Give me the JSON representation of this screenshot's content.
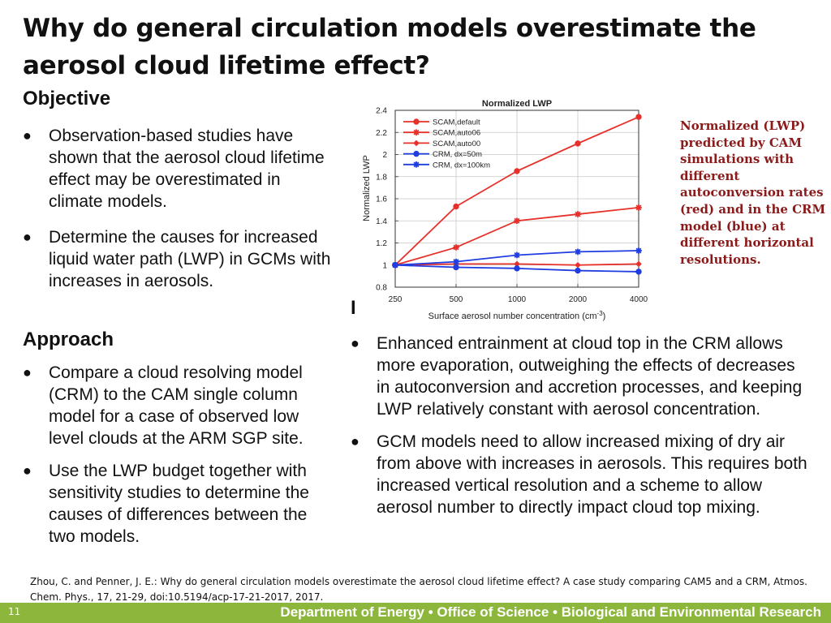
{
  "slide": {
    "title": "Why do general circulation models overestimate the aerosol cloud lifetime effect?",
    "objective_heading": "Objective",
    "objective_bullets": [
      "Observation-based studies  have shown that the aerosol cloud lifetime effect may be overestimated in climate models.",
      "Determine the causes for increased liquid water path (LWP) in GCMs with increases in aerosols."
    ],
    "approach_heading": "Approach",
    "approach_bullets": [
      "Compare a cloud resolving model (CRM) to the CAM single column model for a case of observed low level clouds at the ARM SGP site.",
      "Use the LWP budget together with sensitivity studies to determine the causes of differences between the two models."
    ],
    "impact_heading_visible": "I",
    "impact_bullets": [
      "Enhanced entrainment at cloud top in the CRM allows more evaporation, outweighing the effects of decreases in autoconversion and accretion processes, and keeping LWP relatively constant with aerosol concentration.",
      "GCM models need to allow increased mixing of dry air from above with increases in aerosols. This requires both increased vertical resolution and a scheme to allow aerosol number to directly impact cloud top mixing."
    ],
    "figure_caption": "Normalized (LWP) predicted by CAM simulations with different autoconversion rates (red) and in the CRM  model (blue) at different horizontal resolutions.",
    "citation": "Zhou, C. and Penner, J. E.: Why do general circulation models overestimate the aerosol cloud lifetime effect? A case study comparing CAM5 and a CRM, Atmos. Chem. Phys., 17, 21-29, doi:10.5194/acp-17-21-2017, 2017.",
    "footer_text": "Department of Energy  •  Office of Science  •  Biological and Environmental Research",
    "page_number": "11",
    "colors": {
      "footer_bar": "#8db73c",
      "caption_text": "#8b1a1a"
    }
  },
  "chart_data": {
    "type": "line",
    "title": "Normalized LWP",
    "xlabel": "Surface aerosol number concentration (cm",
    "xlabel_sup": "-3",
    "xlabel_end": ")",
    "ylabel": "Normalized LWP",
    "categories": [
      "250",
      "500",
      "1000",
      "2000",
      "4000"
    ],
    "ylim": [
      0.8,
      2.4
    ],
    "yticks": [
      "0.8",
      "1",
      "1.2",
      "1.4",
      "1.6",
      "1.8",
      "2",
      "2.2",
      "2.4"
    ],
    "grid": true,
    "legend_position": "top-left",
    "series": [
      {
        "name": "SCAM,default",
        "color": "#e8302a",
        "marker": "circle",
        "values": [
          1.0,
          1.53,
          1.85,
          2.1,
          2.34
        ]
      },
      {
        "name": "SCAM,auto06",
        "color": "#e8302a",
        "marker": "star",
        "values": [
          1.0,
          1.16,
          1.4,
          1.46,
          1.52
        ]
      },
      {
        "name": "SCAM,auto00",
        "color": "#e8302a",
        "marker": "diamond",
        "values": [
          1.0,
          1.01,
          1.01,
          1.0,
          1.01
        ]
      },
      {
        "name": "CRM, dx=50m",
        "color": "#1f3de0",
        "marker": "circle",
        "values": [
          1.0,
          0.98,
          0.97,
          0.95,
          0.94
        ]
      },
      {
        "name": "CRM, dx=100km",
        "color": "#1f3de0",
        "marker": "star",
        "values": [
          1.0,
          1.03,
          1.09,
          1.12,
          1.13
        ]
      }
    ]
  }
}
